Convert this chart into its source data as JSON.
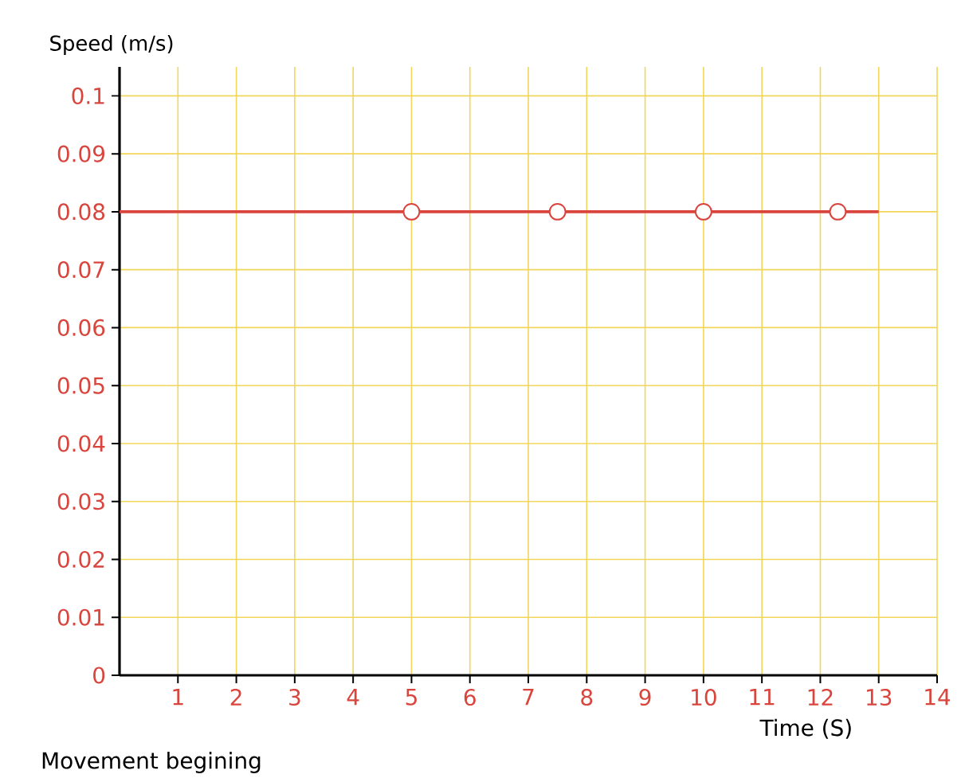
{
  "chart_data": {
    "type": "line",
    "xlabel": "Time (S)",
    "ylabel": "Speed (m/s)",
    "annotations": [
      "Movement begining"
    ],
    "xlim": [
      0,
      14
    ],
    "ylim": [
      0,
      0.105
    ],
    "xticks": [
      1,
      2,
      3,
      4,
      5,
      6,
      7,
      8,
      9,
      10,
      11,
      12,
      13,
      14
    ],
    "yticks": [
      0,
      0.01,
      0.02,
      0.03,
      0.04,
      0.05,
      0.06,
      0.07,
      0.08,
      0.09,
      0.1
    ],
    "grid": true,
    "line_style": "solid",
    "series": [
      {
        "color": "#d9453d",
        "x": [
          0,
          13
        ],
        "values": [
          0.08,
          0.08
        ]
      },
      {
        "type": "scatter",
        "marker": "circle",
        "color": "#d9453d",
        "x": [
          5,
          7.5,
          10,
          12.3
        ],
        "values": [
          0.08,
          0.08,
          0.08,
          0.08
        ]
      }
    ]
  }
}
